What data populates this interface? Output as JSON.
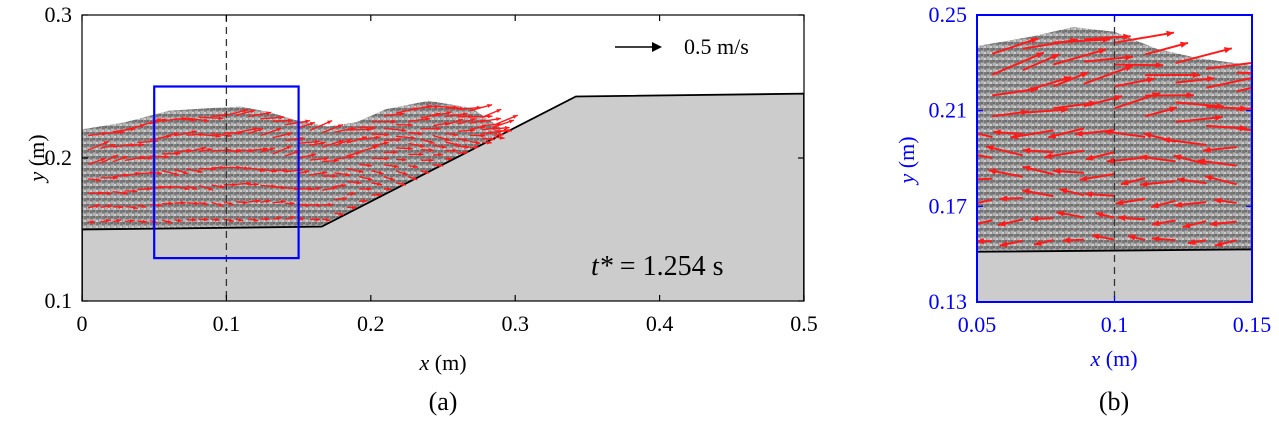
{
  "chart_data": [
    {
      "type": "vector-field",
      "panel_label": "(a)",
      "xlabel_var": "x",
      "xlabel_unit": " (m)",
      "ylabel_var": "y",
      "ylabel_unit": " (m)",
      "xlim": [
        0,
        0.5
      ],
      "ylim": [
        0.1,
        0.3
      ],
      "x_ticks": [
        "0",
        "0.1",
        "0.2",
        "0.3",
        "0.4",
        "0.5"
      ],
      "y_ticks": [
        "0.1",
        "0.2",
        "0.3"
      ],
      "scale_label": "0.5 m/s",
      "time_label_symbol": "t*",
      "time_label_value": "= 1.254 s",
      "dashed_line_x": 0.1,
      "inset_box": {
        "x": [
          0.05,
          0.15
        ],
        "y": [
          0.13,
          0.25
        ]
      },
      "bed_profile": {
        "x": [
          0,
          0.166,
          0.342,
          0.5
        ],
        "y": [
          0.15,
          0.152,
          0.243,
          0.245
        ]
      },
      "free_surface": {
        "x": [
          0,
          0.03,
          0.06,
          0.09,
          0.11,
          0.13,
          0.15,
          0.17,
          0.19,
          0.21,
          0.24,
          0.27,
          0.29
        ],
        "y": [
          0.22,
          0.225,
          0.233,
          0.235,
          0.236,
          0.232,
          0.226,
          0.222,
          0.225,
          0.234,
          0.24,
          0.235,
          0.221
        ]
      },
      "colors": {
        "vectors": "#ff1a1a",
        "bed": "#cccccc",
        "inset": "#0000ff"
      }
    },
    {
      "type": "vector-field",
      "panel_label": "(b)",
      "xlabel_var": "x",
      "xlabel_unit": " (m)",
      "ylabel_var": "y",
      "ylabel_unit": " (m)",
      "xlim": [
        0.05,
        0.15
      ],
      "ylim": [
        0.13,
        0.25
      ],
      "x_ticks": [
        "0.05",
        "0.1",
        "0.15"
      ],
      "y_ticks": [
        "0.13",
        "0.17",
        "0.21",
        "0.25"
      ],
      "dashed_line_x": 0.1,
      "bed_profile": {
        "x": [
          0.05,
          0.15
        ],
        "y": [
          0.151,
          0.152
        ]
      },
      "free_surface": {
        "x": [
          0.05,
          0.07,
          0.085,
          0.1,
          0.115,
          0.13,
          0.15
        ],
        "y": [
          0.237,
          0.241,
          0.245,
          0.243,
          0.236,
          0.232,
          0.229
        ]
      },
      "colors": {
        "vectors": "#ff1a1a",
        "bed": "#cccccc",
        "axes": "#0000ff"
      }
    }
  ]
}
